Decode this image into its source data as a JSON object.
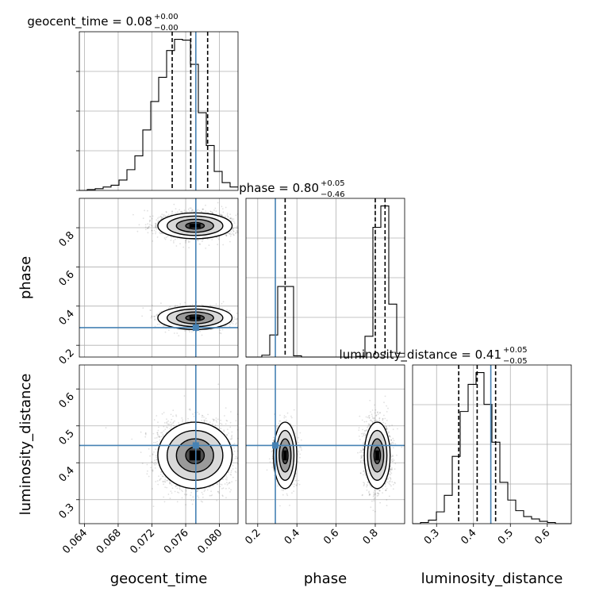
{
  "chart_data": {
    "type": "corner",
    "parameters": [
      "geocent_time",
      "phase",
      "luminosity_distance"
    ],
    "titles": [
      {
        "param": "geocent_time",
        "text": "geocent_time = 0.08",
        "sup": "+0.00",
        "sub": "−0.00"
      },
      {
        "param": "phase",
        "text": "phase = 0.80",
        "sup": "+0.05",
        "sub": "−0.46"
      },
      {
        "param": "luminosity_distance",
        "text": "luminosity_distance = 0.41",
        "sup": "+0.05",
        "sub": "−0.05"
      }
    ],
    "axes": {
      "geocent_time": {
        "range": [
          0.0634,
          0.0822
        ],
        "ticks": [
          0.064,
          0.068,
          0.072,
          0.076,
          0.08
        ],
        "tick_labels": [
          "0.064",
          "0.068",
          "0.072",
          "0.076",
          "0.080"
        ]
      },
      "phase": {
        "range": [
          0.14,
          0.95
        ],
        "ticks": [
          0.2,
          0.4,
          0.6,
          0.8
        ],
        "tick_labels": [
          "0.2",
          "0.4",
          "0.6",
          "0.8"
        ]
      },
      "luminosity_distance": {
        "range": [
          0.235,
          0.665
        ],
        "ticks": [
          0.3,
          0.4,
          0.5,
          0.6
        ],
        "tick_labels": [
          "0.3",
          "0.4",
          "0.5",
          "0.6"
        ]
      }
    },
    "axis_labels": {
      "geocent_time": "geocent_time",
      "phase": "phase",
      "luminosity_distance": "luminosity_distance"
    },
    "truths": {
      "geocent_time": 0.0772,
      "phase": 0.29,
      "luminosity_distance": 0.447
    },
    "truth_color": "#4682b4",
    "quantiles": {
      "geocent_time": [
        0.0744,
        0.0766,
        0.0786
      ],
      "phase": [
        0.34,
        0.8,
        0.85
      ],
      "luminosity_distance": [
        0.36,
        0.41,
        0.46
      ]
    },
    "histograms": {
      "geocent_time": {
        "edges_range": [
          0.0634,
          0.0822
        ],
        "bins": 20,
        "counts": [
          0,
          1,
          2,
          4,
          6,
          12,
          24,
          40,
          70,
          103,
          131,
          162,
          175,
          174,
          146,
          90,
          52,
          22,
          9,
          4
        ]
      },
      "phase": {
        "edges_range": [
          0.14,
          0.95
        ],
        "bins": 20,
        "counts": [
          0,
          0,
          3,
          35,
          112,
          112,
          2,
          0,
          0,
          0,
          0,
          0,
          0,
          0,
          1,
          33,
          206,
          240,
          84,
          6
        ]
      },
      "luminosity_distance": {
        "edges_range": [
          0.235,
          0.665
        ],
        "bins": 20,
        "counts": [
          0,
          1,
          3,
          10,
          24,
          57,
          95,
          118,
          128,
          101,
          69,
          35,
          20,
          11,
          6,
          4,
          2,
          1,
          0,
          0
        ]
      }
    },
    "modes": {
      "geocent_time": [
        {
          "center": 0.0771,
          "sd": 0.0022,
          "weight": 1.0
        }
      ],
      "phase": [
        {
          "center": 0.81,
          "sd": 0.033,
          "weight": 0.72
        },
        {
          "center": 0.34,
          "sd": 0.03,
          "weight": 0.28
        }
      ],
      "luminosity_distance": [
        {
          "center": 0.42,
          "sd": 0.045,
          "weight": 1.0
        }
      ]
    },
    "grid": true
  }
}
